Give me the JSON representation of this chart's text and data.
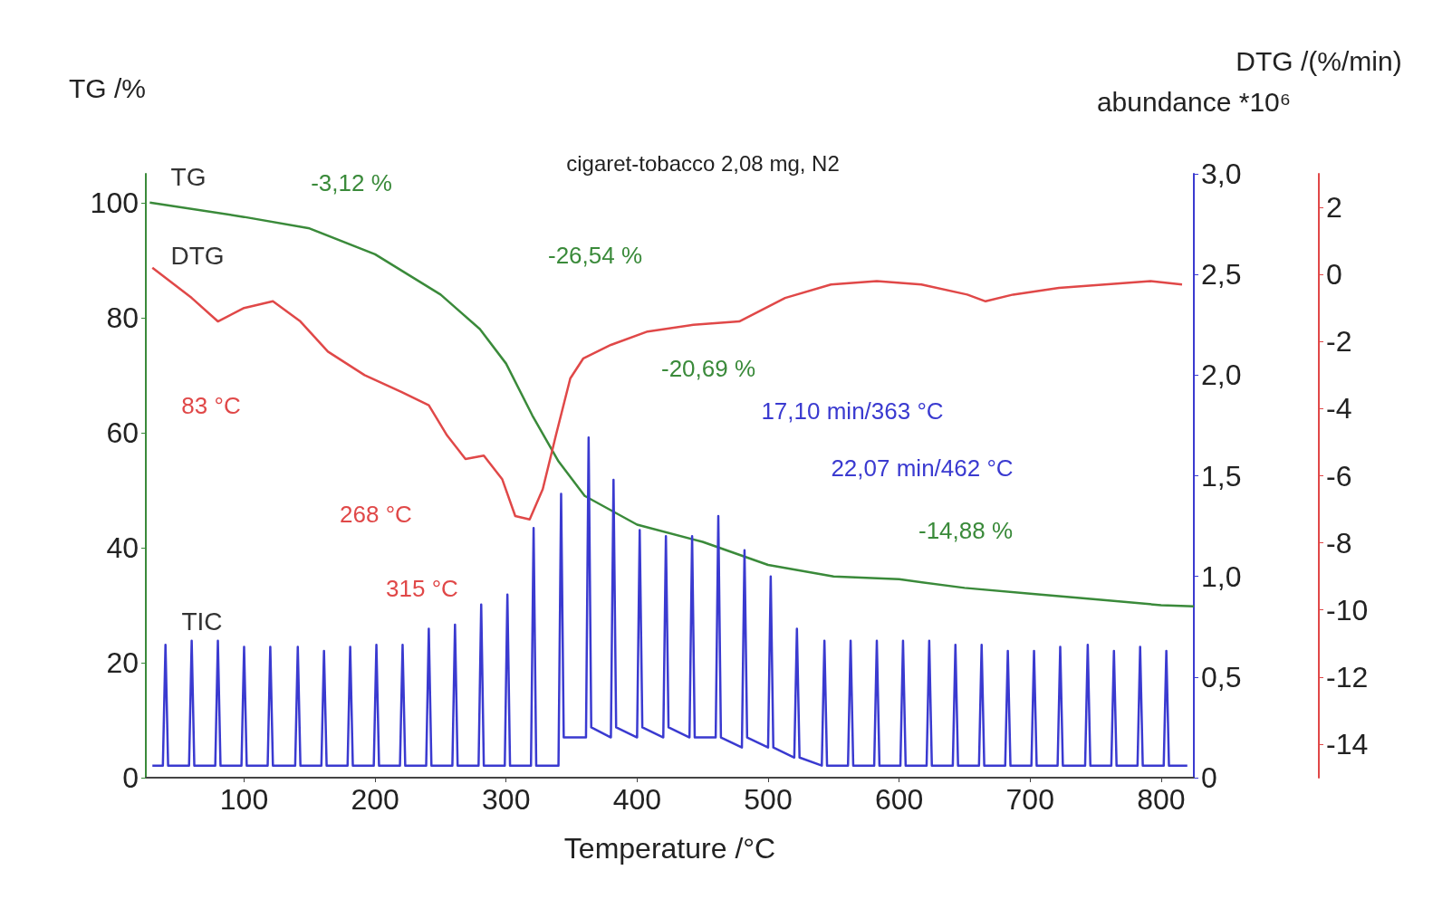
{
  "chart_data": {
    "type": "line",
    "title": "cigaret-tobacco 2,08 mg, N2",
    "xlabel": "Temperature /°C",
    "ylabel": "TG /%",
    "y2label": "abundance *10⁶",
    "y3label": "DTG /(%/min)",
    "xlim": [
      25,
      825
    ],
    "xticks": [
      100,
      200,
      300,
      400,
      500,
      600,
      700,
      800
    ],
    "ylim": [
      0,
      105
    ],
    "yticks": [
      0,
      20,
      40,
      60,
      80,
      100
    ],
    "y2lim": [
      0,
      3
    ],
    "y2ticks": [
      0,
      {
        "value": 0.5,
        "label": "0,5"
      },
      {
        "value": 1,
        "label": "1,0"
      },
      {
        "value": 1.5,
        "label": "1,5"
      },
      {
        "value": 2,
        "label": "2,0"
      },
      {
        "value": 2.5,
        "label": "2,5"
      },
      {
        "value": 3,
        "label": "3,0"
      }
    ],
    "y3lim": [
      -15,
      3
    ],
    "y3ticks": [
      -14,
      -12,
      -10,
      -8,
      -6,
      -4,
      -2,
      0,
      2
    ],
    "marker": "none",
    "annotations": [
      "-3,12 %",
      "-26,54 %",
      "-20,69 %",
      "-14,88 %",
      "83 °C",
      "268 °C",
      "315 °C",
      "17,10 min/363 °C",
      "22,07 min/462 °C"
    ],
    "series": [
      {
        "name": "TG",
        "color": "#3a8a3a",
        "axis": "y",
        "x": [
          28,
          100,
          150,
          200,
          250,
          280,
          300,
          320,
          340,
          360,
          400,
          450,
          500,
          550,
          600,
          650,
          700,
          750,
          800,
          825
        ],
        "values": [
          100,
          97.5,
          95.5,
          91,
          84,
          78,
          72,
          63,
          55,
          49,
          44,
          41,
          37,
          35,
          34.5,
          33,
          32,
          31,
          30,
          29.8
        ]
      },
      {
        "name": "DTG",
        "color": "#e04848",
        "axis": "y3",
        "x": [
          30,
          60,
          80,
          100,
          122,
          143,
          164,
          192,
          220,
          241,
          255,
          269,
          283,
          297,
          307,
          318,
          328,
          338,
          349,
          359,
          380,
          408,
          443,
          478,
          513,
          548,
          583,
          617,
          652,
          666,
          687,
          722,
          757,
          792,
          816
        ],
        "values": [
          0.2,
          -0.7,
          -1.4,
          -1,
          -0.8,
          -1.4,
          -2.3,
          -3,
          -3.5,
          -3.9,
          -4.8,
          -5.5,
          -5.4,
          -6.1,
          -7.2,
          -7.3,
          -6.4,
          -4.8,
          -3.1,
          -2.5,
          -2.1,
          -1.7,
          -1.5,
          -1.4,
          -0.7,
          -0.3,
          -0.2,
          -0.3,
          -0.6,
          -0.8,
          -0.6,
          -0.4,
          -0.3,
          -0.2,
          -0.3
        ]
      },
      {
        "name": "TIC",
        "color": "#3a3ad0",
        "axis": "y2",
        "x": [
          30,
          38,
          40,
          42,
          58,
          60,
          62,
          78,
          80,
          82,
          98,
          100,
          102,
          118,
          120,
          122,
          139,
          141,
          143,
          159,
          161,
          163,
          179,
          181,
          183,
          199,
          201,
          203,
          219,
          221,
          223,
          239,
          241,
          243,
          259,
          261,
          263,
          279,
          281,
          283,
          299,
          301,
          303,
          319,
          321,
          323,
          340,
          342,
          344,
          361,
          363,
          365,
          380,
          382,
          384,
          400,
          402,
          404,
          420,
          422,
          424,
          440,
          442,
          444,
          460,
          462,
          464,
          480,
          482,
          484,
          500,
          502,
          504,
          520,
          522,
          524,
          541,
          543,
          545,
          561,
          563,
          565,
          581,
          583,
          585,
          601,
          603,
          605,
          621,
          623,
          625,
          641,
          643,
          645,
          661,
          663,
          665,
          681,
          683,
          685,
          701,
          703,
          705,
          721,
          723,
          725,
          742,
          744,
          746,
          762,
          764,
          766,
          782,
          784,
          786,
          802,
          804,
          806,
          820
        ],
        "values": [
          0.06,
          0.06,
          0.66,
          0.06,
          0.06,
          0.68,
          0.06,
          0.06,
          0.68,
          0.06,
          0.06,
          0.65,
          0.06,
          0.06,
          0.65,
          0.06,
          0.06,
          0.65,
          0.06,
          0.06,
          0.63,
          0.06,
          0.06,
          0.65,
          0.06,
          0.06,
          0.66,
          0.06,
          0.06,
          0.66,
          0.06,
          0.06,
          0.74,
          0.06,
          0.06,
          0.76,
          0.06,
          0.06,
          0.86,
          0.06,
          0.06,
          0.91,
          0.06,
          0.06,
          1.24,
          0.06,
          0.06,
          1.41,
          0.2,
          0.2,
          1.69,
          0.25,
          0.2,
          1.48,
          0.25,
          0.2,
          1.23,
          0.25,
          0.2,
          1.2,
          0.25,
          0.2,
          1.2,
          0.2,
          0.2,
          1.3,
          0.2,
          0.15,
          1.13,
          0.2,
          0.15,
          1,
          0.15,
          0.1,
          0.74,
          0.1,
          0.06,
          0.68,
          0.06,
          0.06,
          0.68,
          0.06,
          0.06,
          0.68,
          0.06,
          0.06,
          0.68,
          0.06,
          0.06,
          0.68,
          0.06,
          0.06,
          0.66,
          0.06,
          0.06,
          0.66,
          0.06,
          0.06,
          0.63,
          0.06,
          0.06,
          0.63,
          0.06,
          0.06,
          0.65,
          0.06,
          0.06,
          0.66,
          0.06,
          0.06,
          0.63,
          0.06,
          0.06,
          0.65,
          0.06,
          0.06,
          0.63,
          0.06,
          0.06
        ]
      }
    ]
  }
}
